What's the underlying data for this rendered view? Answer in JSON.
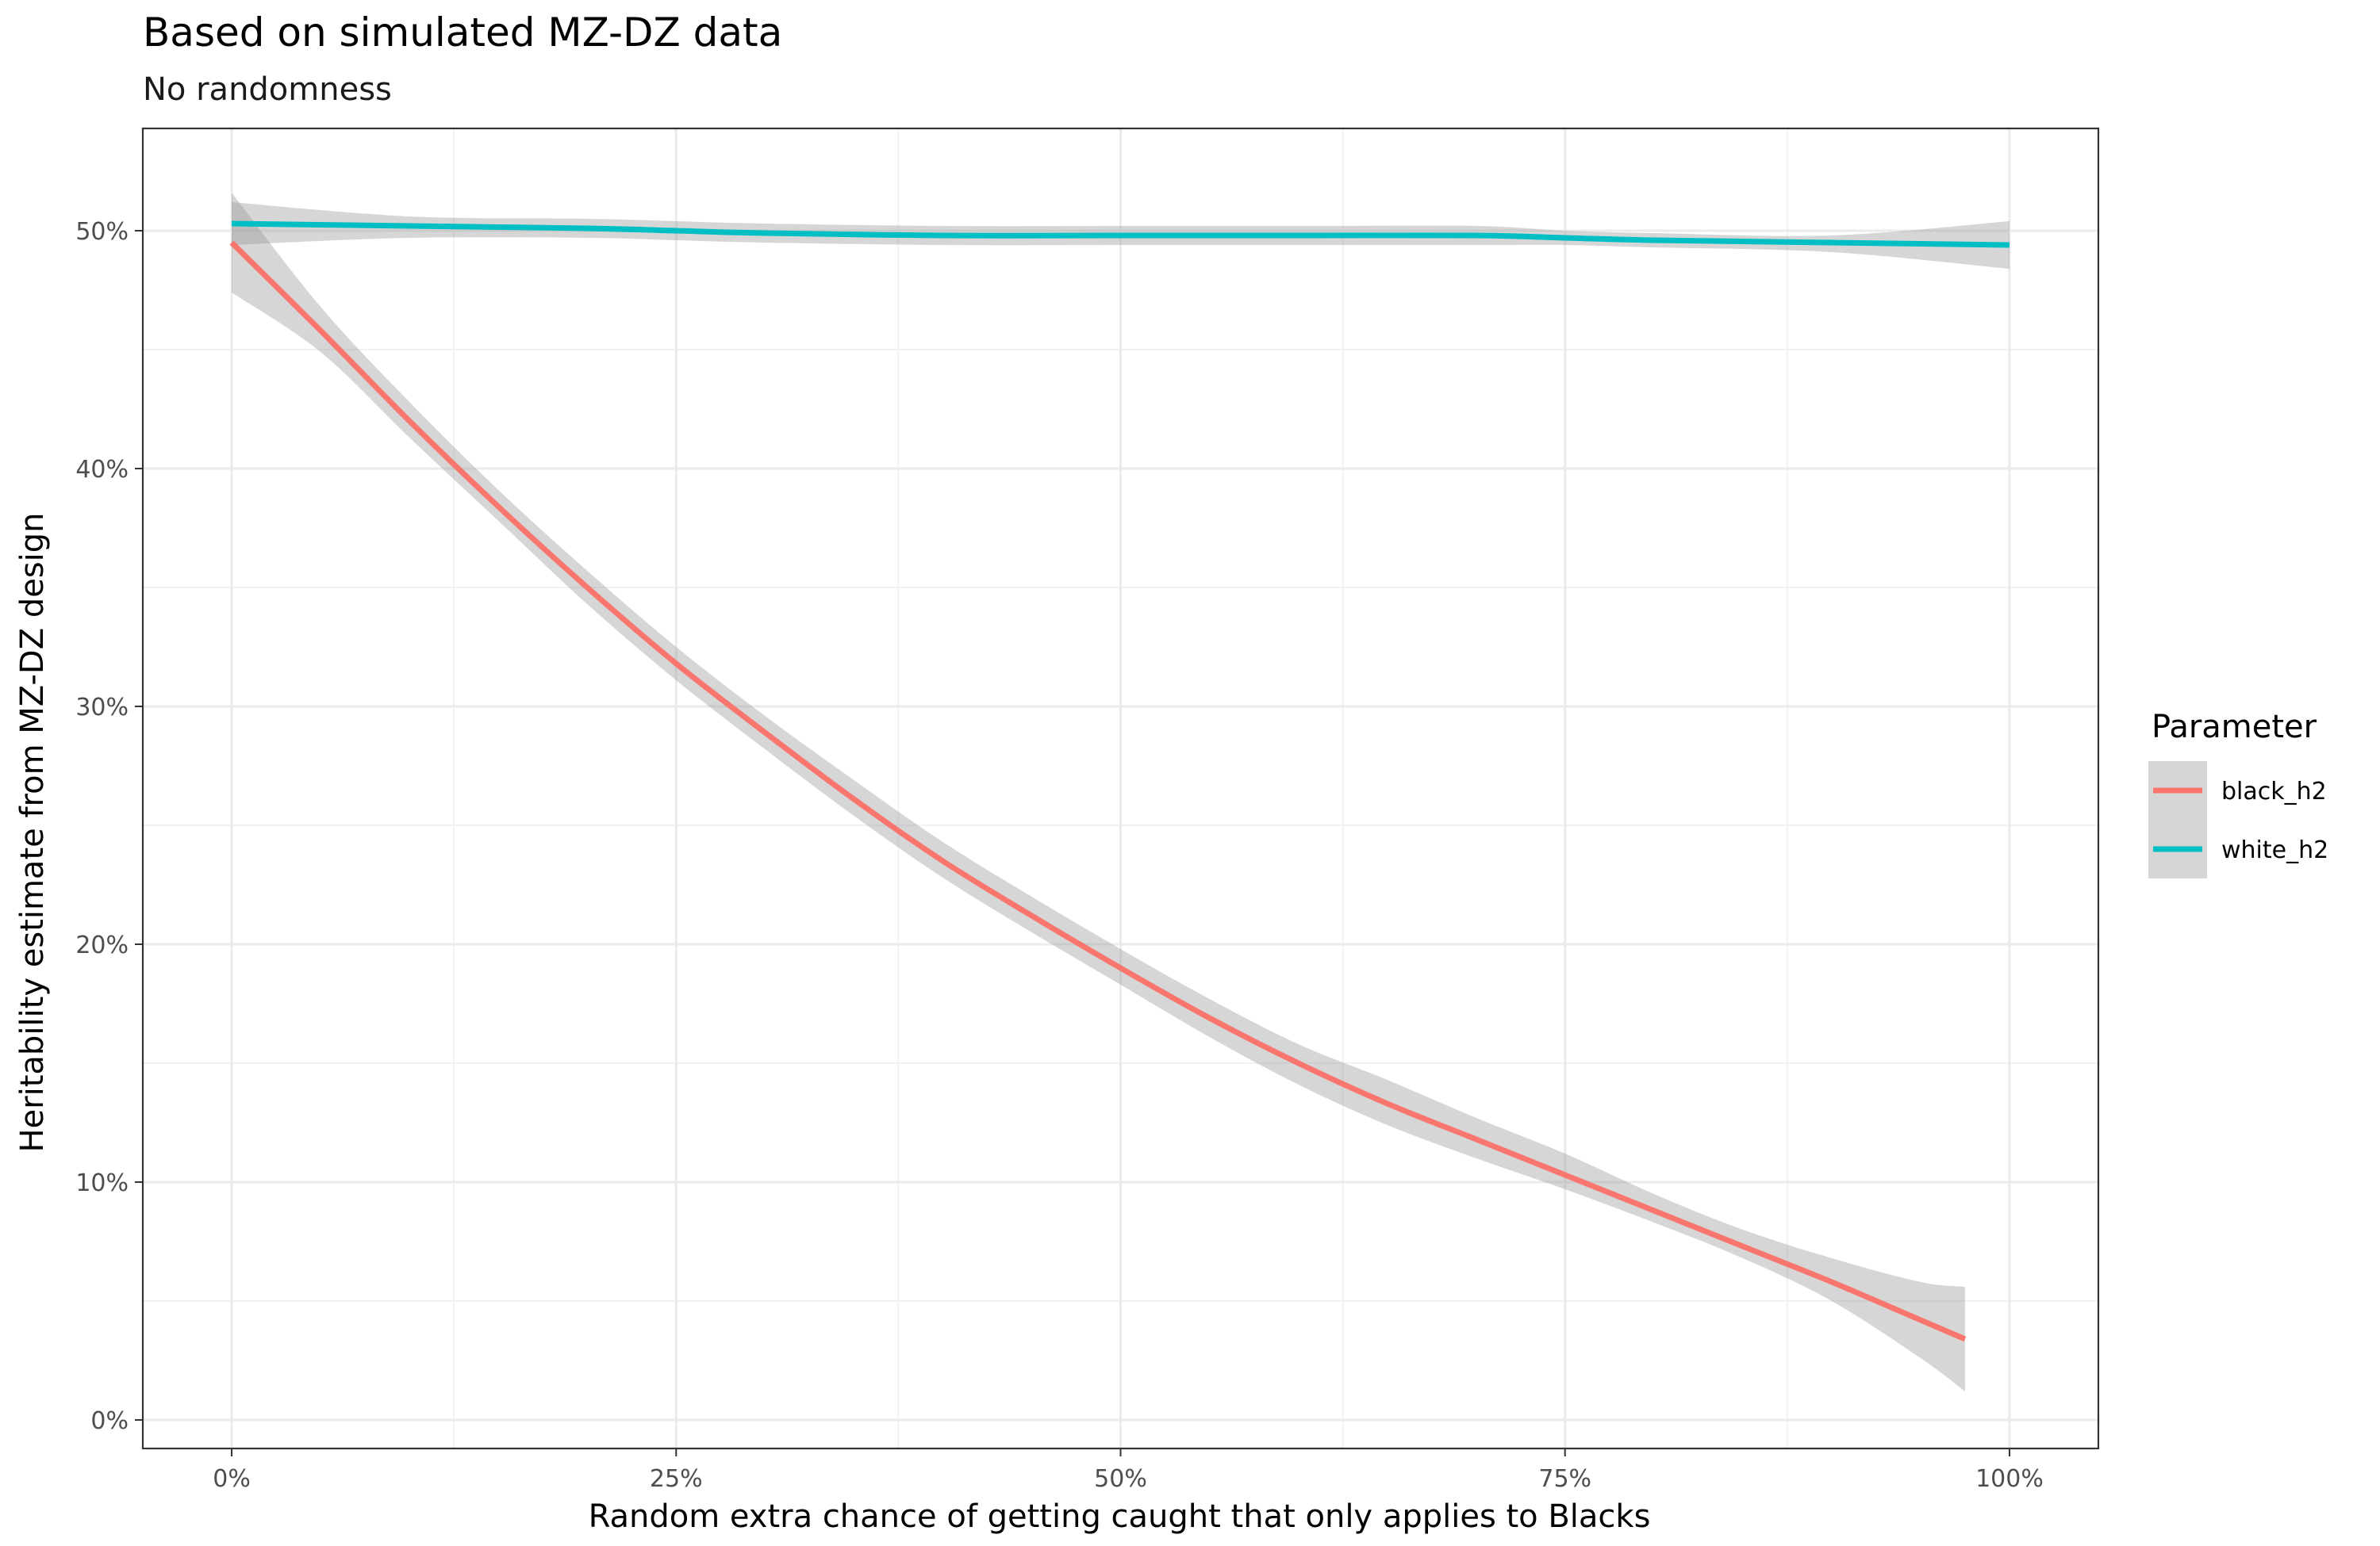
{
  "chart_data": {
    "type": "line",
    "title": "Based on simulated MZ-DZ data",
    "subtitle": "No randomness",
    "xlabel": "Random extra chance of getting caught that only applies to Blacks",
    "ylabel": "Heritability estimate from MZ-DZ design",
    "x_ticks": [
      0,
      25,
      50,
      75,
      100
    ],
    "x_tick_labels": [
      "0%",
      "25%",
      "50%",
      "75%",
      "100%"
    ],
    "y_ticks": [
      0,
      10,
      20,
      30,
      40,
      50
    ],
    "y_tick_labels": [
      "0%",
      "10%",
      "20%",
      "30%",
      "40%",
      "50%"
    ],
    "xlim": [
      -5,
      105
    ],
    "ylim": [
      -1.2,
      54.3
    ],
    "grid": true,
    "legend_title": "Parameter",
    "legend_position": "right",
    "series": [
      {
        "name": "black_h2",
        "color": "#F8766D",
        "x": [
          0,
          5,
          10,
          15,
          20,
          25,
          30,
          35,
          40,
          45,
          50,
          55,
          60,
          65,
          70,
          75,
          80,
          85,
          90,
          95,
          97.5
        ],
        "y": [
          49.5,
          45.8,
          42.0,
          38.4,
          35.0,
          31.8,
          28.9,
          26.1,
          23.5,
          21.2,
          19.0,
          16.9,
          15.0,
          13.3,
          11.8,
          10.3,
          8.8,
          7.3,
          5.8,
          4.2,
          3.4
        ],
        "ci_lower": [
          47.4,
          44.9,
          41.3,
          37.8,
          34.3,
          31.1,
          28.2,
          25.4,
          22.8,
          20.5,
          18.3,
          16.1,
          14.1,
          12.4,
          11.0,
          9.7,
          8.3,
          6.8,
          5.0,
          2.6,
          1.2
        ],
        "ci_upper": [
          51.6,
          46.8,
          42.8,
          39.1,
          35.7,
          32.5,
          29.6,
          26.9,
          24.3,
          22.0,
          19.8,
          17.7,
          15.8,
          14.3,
          12.7,
          11.2,
          9.5,
          8.0,
          6.8,
          5.8,
          5.6
        ]
      },
      {
        "name": "white_h2",
        "color": "#00BFC4",
        "x": [
          0,
          10,
          20,
          25,
          30,
          40,
          50,
          60,
          70,
          75,
          80,
          90,
          100
        ],
        "y": [
          50.3,
          50.2,
          50.1,
          50.0,
          49.9,
          49.8,
          49.8,
          49.8,
          49.8,
          49.7,
          49.6,
          49.5,
          49.4
        ],
        "ci_lower": [
          49.4,
          49.7,
          49.7,
          49.6,
          49.5,
          49.4,
          49.4,
          49.4,
          49.4,
          49.4,
          49.3,
          49.1,
          48.4
        ],
        "ci_upper": [
          51.2,
          50.6,
          50.5,
          50.4,
          50.3,
          50.2,
          50.2,
          50.2,
          50.2,
          50.0,
          49.9,
          49.8,
          50.4
        ]
      }
    ]
  }
}
